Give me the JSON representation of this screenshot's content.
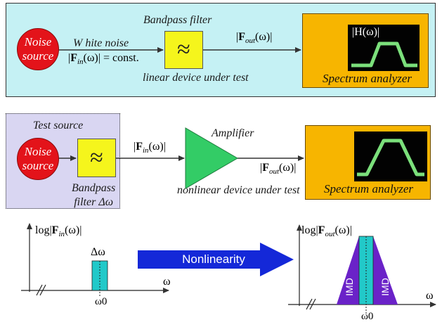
{
  "top_setup": {
    "noise_source": [
      "Noise",
      "source"
    ],
    "white_noise": "W hite  noise",
    "fin_const": "|F_in(ω)| = const.",
    "fin_const_parts": {
      "open": "|",
      "F": "F",
      "sub": "in",
      "paren": "(ω)",
      "close": "| = const."
    },
    "filter_title": "Bandpass filter",
    "filter_symbol": "≈",
    "device_label": "linear device under test",
    "fout_label": {
      "open": "|",
      "F": "F",
      "sub": "out",
      "paren": "(ω)",
      "close": "|"
    },
    "h_label": "|H(ω)|",
    "analyzer_label": "Spectrum analyzer"
  },
  "middle_setup": {
    "test_source": "Test source",
    "noise_source": [
      "Noise",
      "source"
    ],
    "filter_symbol": "≈",
    "filter_label": [
      "Bandpass",
      "filter  Δω"
    ],
    "fin_label": {
      "open": "|",
      "F": "F",
      "sub": "in",
      "paren": "(ω)",
      "close": "|"
    },
    "amplifier_label": "Amplifier",
    "fout_label": {
      "open": "|",
      "F": "F",
      "sub": "out",
      "paren": "(ω)",
      "close": "|"
    },
    "device_label": "nonlinear device under test",
    "analyzer_label": "Spectrum analyzer"
  },
  "bottom": {
    "left_plot": {
      "ylabel": {
        "pre": "log|",
        "F": "F",
        "sub": "in",
        "paren": "(ω)",
        "close": "|"
      },
      "delta_label": "Δω",
      "xlabel": "ω",
      "omega0": "ω0"
    },
    "arrow_label": "Nonlinearity",
    "right_plot": {
      "ylabel": {
        "pre": "log|",
        "F": "F",
        "sub": "out",
        "paren": "(ω)",
        "close": "|"
      },
      "imd_left": "IMD",
      "imd_right": "IMD",
      "xlabel": "ω",
      "omega0": "ω0"
    }
  },
  "colors": {
    "panel_top_bg": "#c5f1f4",
    "panel_source_bg": "#d9d6f2",
    "noise_red": "#e3131a",
    "filter_yellow": "#f5f51c",
    "analyzer_orange": "#f7b500",
    "amplifier_green": "#33cc66",
    "trace_green": "#7be07b",
    "band_cyan": "#22c9c9",
    "imd_purple": "#6a22c8",
    "arrow_blue": "#1428d8"
  }
}
